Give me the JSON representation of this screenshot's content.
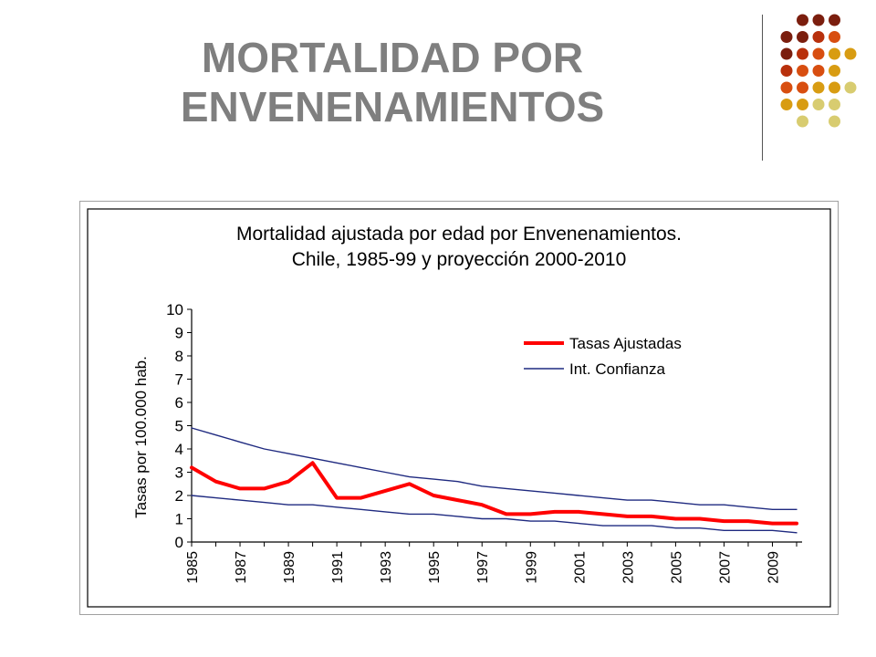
{
  "slide": {
    "title_line1": "MORTALIDAD POR",
    "title_line2": "ENVENENAMIENTOS"
  },
  "decoration": {
    "dot_colors": [
      "#7b1e0e",
      "#b8300c",
      "#d84e10",
      "#d89c12",
      "#d8cc70"
    ]
  },
  "chart_data": {
    "type": "line",
    "title_line1": "Mortalidad ajustada por edad por Envenenamientos.",
    "title_line2": "Chile, 1985-99 y proyección 2000-2010",
    "xlabel": "",
    "ylabel": "Tasas por 100.000 hab.",
    "ylim": [
      0,
      10
    ],
    "yticks": [
      "0",
      "1",
      "2",
      "3",
      "4",
      "5",
      "6",
      "7",
      "8",
      "9",
      "10"
    ],
    "x": [
      1985,
      1986,
      1987,
      1988,
      1989,
      1990,
      1991,
      1992,
      1993,
      1994,
      1995,
      1996,
      1997,
      1998,
      1999,
      2000,
      2001,
      2002,
      2003,
      2004,
      2005,
      2006,
      2007,
      2008,
      2009,
      2010
    ],
    "xtick_labels": [
      "1985",
      "1987",
      "1989",
      "1991",
      "1993",
      "1995",
      "1997",
      "1999",
      "2001",
      "2003",
      "2005",
      "2007",
      "2009"
    ],
    "legend_position": "top-right",
    "series": [
      {
        "name": "Tasas Ajustadas",
        "color": "#ff0000",
        "values": [
          3.2,
          2.6,
          2.3,
          2.3,
          2.6,
          3.4,
          1.9,
          1.9,
          2.2,
          2.5,
          2.0,
          1.8,
          1.6,
          1.2,
          1.2,
          1.3,
          1.3,
          1.2,
          1.1,
          1.1,
          1.0,
          1.0,
          0.9,
          0.9,
          0.8,
          0.8
        ]
      },
      {
        "name": "Int. Confianza",
        "color": "#1f2a80",
        "values": [
          4.9,
          4.6,
          4.3,
          4.0,
          3.8,
          3.6,
          3.4,
          3.2,
          3.0,
          2.8,
          2.7,
          2.6,
          2.4,
          2.3,
          2.2,
          2.1,
          2.0,
          1.9,
          1.8,
          1.8,
          1.7,
          1.6,
          1.6,
          1.5,
          1.4,
          1.4
        ]
      },
      {
        "name": "",
        "color": "#1f2a80",
        "values": [
          2.0,
          1.9,
          1.8,
          1.7,
          1.6,
          1.6,
          1.5,
          1.4,
          1.3,
          1.2,
          1.2,
          1.1,
          1.0,
          1.0,
          0.9,
          0.9,
          0.8,
          0.7,
          0.7,
          0.7,
          0.6,
          0.6,
          0.5,
          0.5,
          0.5,
          0.4
        ]
      }
    ]
  }
}
